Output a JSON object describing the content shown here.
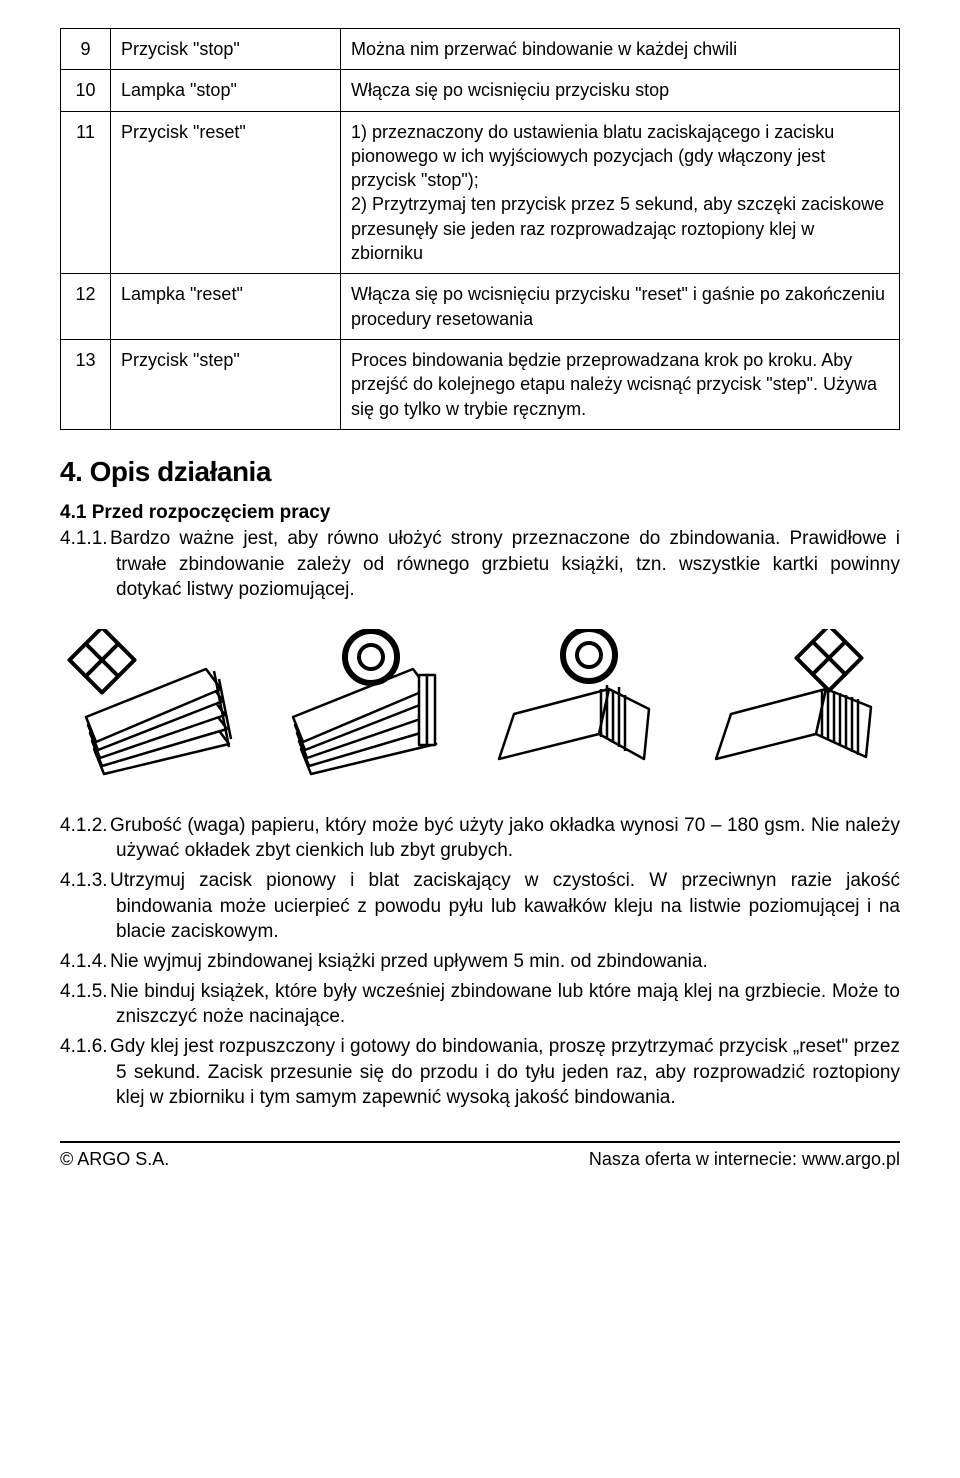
{
  "table": {
    "rows": [
      {
        "num": "9",
        "name": "Przycisk \"stop\"",
        "desc": "Można nim przerwać bindowanie w każdej chwili"
      },
      {
        "num": "10",
        "name": "Lampka \"stop\"",
        "desc": "Włącza się po wcisnięciu przycisku stop"
      },
      {
        "num": "11",
        "name": "Przycisk \"reset\"",
        "desc": "1) przeznaczony do ustawienia blatu zaciskającego i zacisku pionowego w ich wyjściowych pozycjach (gdy włączony jest przycisk \"stop\");\n2) Przytrzymaj ten przycisk przez 5 sekund, aby szczęki zaciskowe przesunęły sie jeden raz rozprowadzając roztopiony klej w zbiorniku"
      },
      {
        "num": "12",
        "name": "Lampka \"reset\"",
        "desc": "Włącza się po wcisnięciu przycisku \"reset\" i gaśnie po zakończeniu procedury resetowania"
      },
      {
        "num": "13",
        "name": "Przycisk \"step\"",
        "desc": "Proces bindowania będzie przeprowadzana krok po kroku. Aby przejść do kolejnego etapu należy wcisnąć przycisk \"step\". Używa się go tylko w trybie ręcznym."
      }
    ]
  },
  "section": {
    "title": "4. Opis działania",
    "subhead": "4.1 Przed rozpoczęciem pracy",
    "items": [
      {
        "n": "4.1.1.",
        "text": "Bardzo ważne jest, aby równo ułożyć strony przeznaczone do zbindowania. Prawidłowe i trwałe zbindowanie zależy od równego grzbietu książki, tzn. wszystkie kartki powinny dotykać listwy poziomującej."
      },
      {
        "n": "4.1.2.",
        "text": "Grubość (waga) papieru, który może być użyty jako okładka wynosi 70 – 180 gsm. Nie należy używać okładek zbyt cienkich lub zbyt grubych."
      },
      {
        "n": "4.1.3.",
        "text": "Utrzymuj zacisk pionowy i blat zaciskający w czystości. W przeciwnyn razie jakość bindowania może ucierpieć z powodu pyłu lub kawałków kleju na listwie poziomującej i na blacie zaciskowym."
      },
      {
        "n": "4.1.4.",
        "text": "Nie wyjmuj zbindowanej książki przed upływem 5 min. od zbindowania."
      },
      {
        "n": "4.1.5.",
        "text": "Nie binduj książek, które były wcześniej zbindowane lub które mają klej na grzbiecie. Może to zniszczyć noże nacinające."
      },
      {
        "n": "4.1.6.",
        "text": "Gdy klej jest rozpuszczony i gotowy do bindowania, proszę przytrzymać przycisk „reset\" przez 5 sekund. Zacisk przesunie się do przodu i do tyłu jeden raz, aby rozprowadzić roztopiony klej w zbiorniku i tym samym zapewnić wysoką jakość bindowania."
      }
    ]
  },
  "footer": {
    "left": "© ARGO S.A.",
    "right": "Nasza oferta w internecie: www.argo.pl"
  },
  "diagrams": {
    "stroke": "#000000",
    "fill": "#ffffff"
  }
}
